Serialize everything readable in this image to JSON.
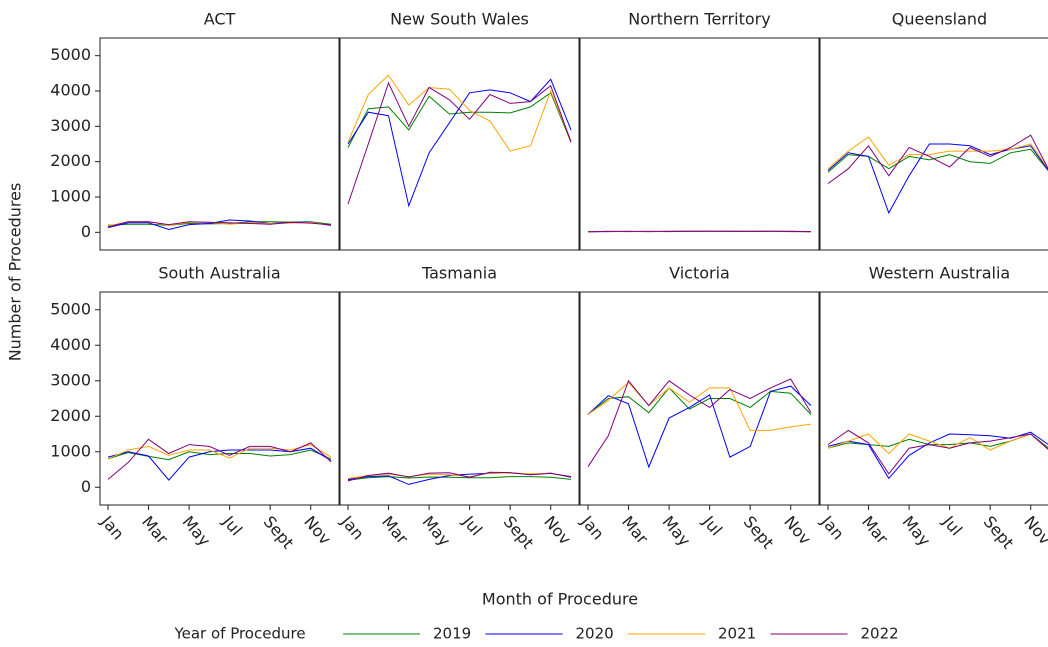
{
  "chart_data": {
    "type": "line",
    "x_label": "Month of Procedure",
    "y_label": "Number of Procedures",
    "categories": [
      "Jan",
      null,
      "Mar",
      null,
      "May",
      null,
      "Jul",
      null,
      "Sept",
      null,
      "Nov",
      null
    ],
    "ylim": [
      -500,
      5500
    ],
    "yticks": [
      0,
      1000,
      2000,
      3000,
      4000,
      5000
    ],
    "legend": {
      "title": "Year of Procedure",
      "entries": [
        {
          "name": "2019",
          "color": "#008000"
        },
        {
          "name": "2020",
          "color": "#0000ff"
        },
        {
          "name": "2021",
          "color": "#ffa500"
        },
        {
          "name": "2022",
          "color": "#800080"
        }
      ]
    },
    "panels": [
      {
        "title": "ACT",
        "lines": [
          {
            "values": [
              200,
              230,
              230,
              200,
              250,
              240,
              250,
              300,
              300,
              290,
              300,
              230
            ]
          },
          {
            "values": [
              130,
              270,
              270,
              80,
              220,
              250,
              350,
              320,
              250,
              280,
              290,
              190
            ]
          },
          {
            "values": [
              180,
              300,
              300,
              200,
              280,
              290,
              230,
              270,
              250,
              260,
              280,
              200
            ]
          },
          {
            "values": [
              150,
              300,
              300,
              220,
              300,
              280,
              270,
              250,
              230,
              280,
              260,
              210
            ]
          }
        ]
      },
      {
        "title": "New South Wales",
        "lines": [
          {
            "values": [
              2400,
              3500,
              3550,
              2900,
              3850,
              3350,
              3400,
              3400,
              3380,
              3550,
              3950,
              2550
            ]
          },
          {
            "values": [
              2500,
              3400,
              3300,
              750,
              2250,
              3100,
              3950,
              4030,
              3950,
              3700,
              4330,
              2900
            ]
          },
          {
            "values": [
              2550,
              3900,
              4450,
              3600,
              4100,
              4050,
              3450,
              3150,
              2300,
              2450,
              4000,
              2600
            ]
          },
          {
            "values": [
              800,
              2500,
              4230,
              3000,
              4100,
              3750,
              3200,
              3900,
              3650,
              3700,
              4150,
              2550
            ]
          }
        ]
      },
      {
        "title": "Northern Territory",
        "lines": [
          {
            "values": [
              20,
              25,
              20,
              25,
              20,
              30,
              25,
              25,
              30,
              25,
              20,
              15
            ]
          },
          {
            "values": [
              15,
              20,
              25,
              20,
              25,
              30,
              30,
              25,
              30,
              30,
              25,
              20
            ]
          },
          {
            "values": [
              20,
              25,
              25,
              20,
              30,
              30,
              25,
              30,
              30,
              25,
              30,
              20
            ]
          },
          {
            "values": [
              15,
              25,
              25,
              25,
              25,
              30,
              30,
              30,
              25,
              30,
              25,
              20
            ]
          }
        ]
      },
      {
        "title": "Queensland",
        "lines": [
          {
            "values": [
              1700,
              2200,
              2150,
              1800,
              2150,
              2050,
              2200,
              2000,
              1950,
              2250,
              2350,
              1650
            ]
          },
          {
            "values": [
              1750,
              2250,
              2150,
              550,
              1600,
              2500,
              2500,
              2450,
              2200,
              2350,
              2450,
              1650
            ]
          },
          {
            "values": [
              1800,
              2300,
              2700,
              1900,
              2200,
              2200,
              2300,
              2300,
              2300,
              2350,
              2500,
              1700
            ]
          },
          {
            "values": [
              1380,
              1800,
              2450,
              1600,
              2400,
              2150,
              1850,
              2400,
              2150,
              2400,
              2750,
              1650
            ]
          }
        ]
      },
      {
        "title": "South Australia",
        "lines": [
          {
            "values": [
              800,
              980,
              870,
              780,
              1000,
              920,
              950,
              950,
              880,
              920,
              1050,
              800
            ]
          },
          {
            "values": [
              850,
              1000,
              880,
              200,
              850,
              1000,
              1050,
              1050,
              1050,
              1000,
              1100,
              750
            ]
          },
          {
            "values": [
              800,
              1050,
              1150,
              900,
              1050,
              1050,
              820,
              1100,
              1100,
              1050,
              1200,
              850
            ]
          },
          {
            "values": [
              220,
              700,
              1350,
              950,
              1200,
              1150,
              900,
              1150,
              1150,
              1000,
              1250,
              720
            ]
          }
        ]
      },
      {
        "title": "Tasmania",
        "lines": [
          {
            "values": [
              200,
              270,
              300,
              260,
              290,
              280,
              270,
              270,
              300,
              300,
              280,
              220
            ]
          },
          {
            "values": [
              220,
              300,
              320,
              80,
              220,
              330,
              370,
              390,
              410,
              360,
              400,
              280
            ]
          },
          {
            "values": [
              250,
              330,
              370,
              300,
              370,
              350,
              300,
              400,
              400,
              380,
              390,
              300
            ]
          },
          {
            "values": [
              180,
              330,
              400,
              290,
              400,
              410,
              280,
              420,
              410,
              350,
              390,
              300
            ]
          }
        ]
      },
      {
        "title": "Victoria",
        "lines": [
          {
            "values": [
              2050,
              2500,
              2550,
              2100,
              2800,
              2200,
              2500,
              2500,
              2250,
              2700,
              2650,
              2050
            ]
          },
          {
            "values": [
              2050,
              2580,
              2350,
              570,
              1950,
              2250,
              2600,
              850,
              1150,
              2700,
              2850,
              2300
            ]
          },
          {
            "values": [
              2050,
              2450,
              2950,
              2300,
              2800,
              2400,
              2800,
              2800,
              1600,
              1600,
              1700,
              1780
            ]
          },
          {
            "values": [
              580,
              1450,
              3000,
              2300,
              3000,
              2600,
              2250,
              2750,
              2500,
              2800,
              3050,
              2100
            ]
          }
        ]
      },
      {
        "title": "Western Australia",
        "lines": [
          {
            "values": [
              1100,
              1250,
              1200,
              1150,
              1350,
              1200,
              1200,
              1250,
              1150,
              1300,
              1500,
              1050
            ]
          },
          {
            "values": [
              1150,
              1300,
              1200,
              250,
              900,
              1250,
              1500,
              1480,
              1450,
              1380,
              1550,
              1150
            ]
          },
          {
            "values": [
              1100,
              1300,
              1500,
              950,
              1500,
              1300,
              1100,
              1400,
              1050,
              1300,
              1500,
              1000
            ]
          },
          {
            "values": [
              1200,
              1600,
              1250,
              380,
              1100,
              1200,
              1100,
              1250,
              1300,
              1400,
              1500,
              1000
            ]
          }
        ]
      }
    ]
  }
}
